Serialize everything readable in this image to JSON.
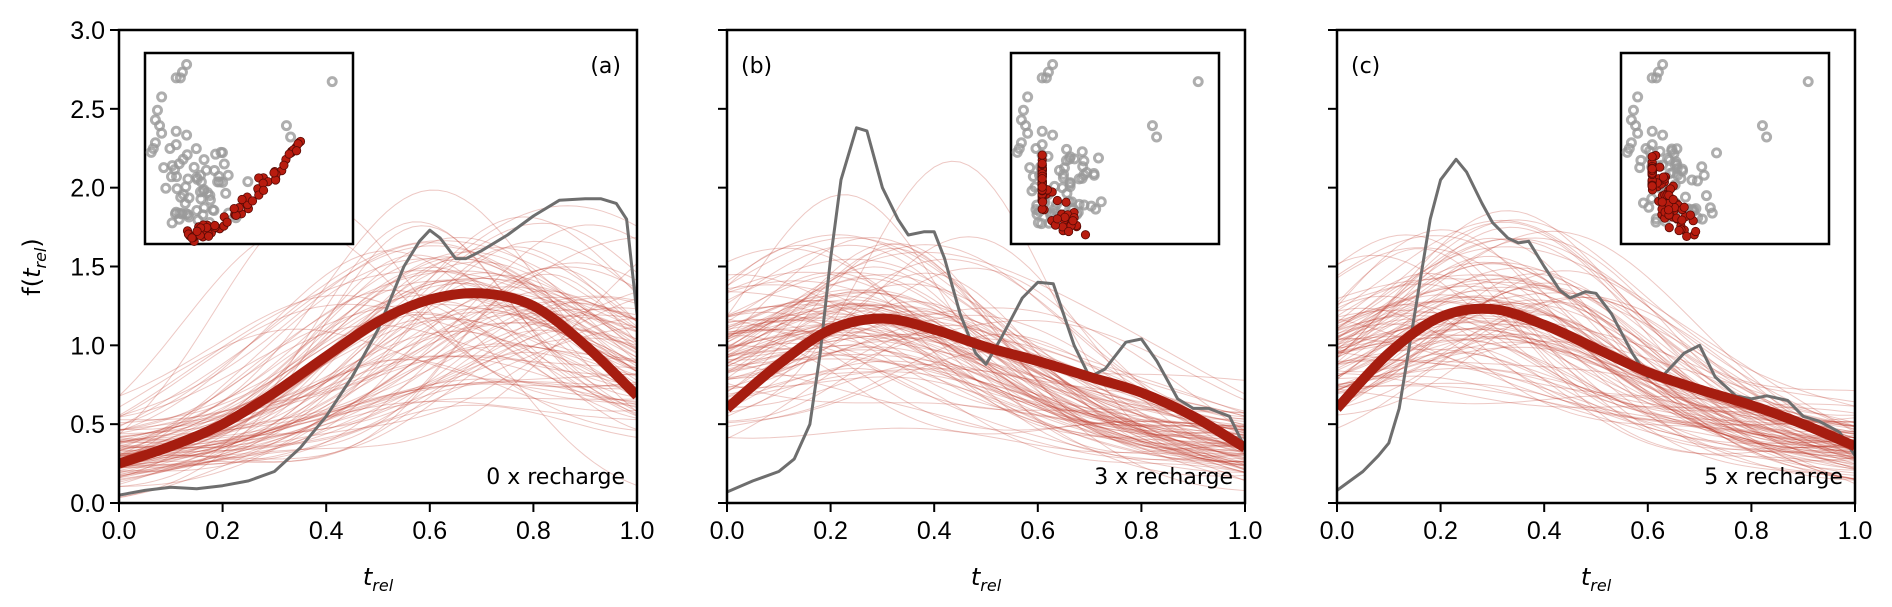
{
  "chart_data": [
    {
      "type": "line",
      "panel_label": "(a)",
      "annotation": "0 x recharge",
      "xlabel": "t_rel",
      "ylabel": "f(t_rel)",
      "xlim": [
        0,
        1
      ],
      "ylim": [
        0,
        3
      ],
      "xticks": [
        "0.0",
        "0.2",
        "0.4",
        "0.6",
        "0.8",
        "1.0"
      ],
      "yticks": [
        "0.0",
        "0.5",
        "1.0",
        "1.5",
        "2.0",
        "2.5",
        "3.0"
      ],
      "mean_curve": {
        "x": [
          0,
          0.1,
          0.2,
          0.3,
          0.4,
          0.5,
          0.6,
          0.7,
          0.8,
          0.9,
          1.0
        ],
        "y": [
          0.25,
          0.36,
          0.5,
          0.7,
          0.93,
          1.15,
          1.29,
          1.33,
          1.25,
          1.0,
          0.68
        ]
      },
      "observed_curve": {
        "x": [
          0,
          0.05,
          0.1,
          0.15,
          0.2,
          0.25,
          0.3,
          0.35,
          0.4,
          0.45,
          0.5,
          0.55,
          0.58,
          0.6,
          0.62,
          0.65,
          0.67,
          0.7,
          0.75,
          0.8,
          0.85,
          0.9,
          0.93,
          0.96,
          0.98,
          1.0
        ],
        "y": [
          0.05,
          0.08,
          0.1,
          0.09,
          0.11,
          0.14,
          0.2,
          0.35,
          0.55,
          0.8,
          1.1,
          1.5,
          1.66,
          1.73,
          1.68,
          1.55,
          1.55,
          1.6,
          1.7,
          1.82,
          1.92,
          1.93,
          1.93,
          1.9,
          1.8,
          1.2
        ]
      },
      "ensemble": {
        "count": 100,
        "peak_center": 0.68,
        "peak_spread": 0.14,
        "amp": 1.3,
        "amp_spread": 0.28,
        "start": 0.28,
        "start_spread": 0.1
      },
      "inset": {
        "gray_points": 80,
        "red_points": 70,
        "shape": "rising-right"
      }
    },
    {
      "type": "line",
      "panel_label": "(b)",
      "annotation": "3 x recharge",
      "xlabel": "t_rel",
      "xlim": [
        0,
        1
      ],
      "ylim": [
        0,
        3
      ],
      "xticks": [
        "0.0",
        "0.2",
        "0.4",
        "0.6",
        "0.8",
        "1.0"
      ],
      "mean_curve": {
        "x": [
          0,
          0.1,
          0.2,
          0.3,
          0.4,
          0.5,
          0.6,
          0.7,
          0.8,
          0.9,
          1.0
        ],
        "y": [
          0.6,
          0.88,
          1.1,
          1.17,
          1.1,
          0.99,
          0.9,
          0.8,
          0.7,
          0.55,
          0.35
        ]
      },
      "observed_curve": {
        "x": [
          0,
          0.05,
          0.1,
          0.13,
          0.16,
          0.18,
          0.2,
          0.22,
          0.25,
          0.27,
          0.3,
          0.33,
          0.35,
          0.38,
          0.4,
          0.42,
          0.45,
          0.48,
          0.5,
          0.53,
          0.57,
          0.6,
          0.63,
          0.67,
          0.7,
          0.73,
          0.77,
          0.8,
          0.83,
          0.87,
          0.9,
          0.93,
          0.97,
          1.0
        ],
        "y": [
          0.07,
          0.14,
          0.2,
          0.28,
          0.5,
          0.95,
          1.55,
          2.05,
          2.38,
          2.36,
          2.0,
          1.8,
          1.7,
          1.72,
          1.72,
          1.55,
          1.2,
          0.95,
          0.88,
          1.05,
          1.3,
          1.4,
          1.39,
          1.0,
          0.8,
          0.85,
          1.02,
          1.04,
          0.9,
          0.66,
          0.6,
          0.6,
          0.55,
          0.35
        ]
      },
      "ensemble": {
        "count": 100,
        "peak_center": 0.3,
        "peak_spread": 0.12,
        "amp": 1.2,
        "amp_spread": 0.3,
        "start": 0.6,
        "start_spread": 0.15
      },
      "inset": {
        "gray_points": 80,
        "red_points": 80,
        "shape": "left-cup"
      }
    },
    {
      "type": "line",
      "panel_label": "(c)",
      "annotation": "5 x recharge",
      "xlabel": "t_rel",
      "xlim": [
        0,
        1
      ],
      "ylim": [
        0,
        3
      ],
      "xticks": [
        "0.0",
        "0.2",
        "0.4",
        "0.6",
        "0.8",
        "1.0"
      ],
      "mean_curve": {
        "x": [
          0,
          0.1,
          0.2,
          0.3,
          0.4,
          0.5,
          0.6,
          0.7,
          0.8,
          0.9,
          1.0
        ],
        "y": [
          0.6,
          0.95,
          1.18,
          1.23,
          1.13,
          0.98,
          0.83,
          0.72,
          0.62,
          0.5,
          0.36
        ]
      },
      "observed_curve": {
        "x": [
          0,
          0.05,
          0.08,
          0.1,
          0.12,
          0.15,
          0.18,
          0.2,
          0.23,
          0.25,
          0.28,
          0.3,
          0.33,
          0.35,
          0.37,
          0.4,
          0.43,
          0.45,
          0.48,
          0.5,
          0.53,
          0.57,
          0.6,
          0.63,
          0.67,
          0.7,
          0.73,
          0.77,
          0.8,
          0.83,
          0.87,
          0.9,
          0.93,
          0.97,
          1.0
        ],
        "y": [
          0.08,
          0.2,
          0.3,
          0.38,
          0.6,
          1.2,
          1.8,
          2.05,
          2.18,
          2.1,
          1.9,
          1.78,
          1.68,
          1.65,
          1.66,
          1.5,
          1.35,
          1.3,
          1.34,
          1.33,
          1.2,
          0.95,
          0.8,
          0.81,
          0.95,
          1.0,
          0.8,
          0.68,
          0.66,
          0.68,
          0.65,
          0.55,
          0.52,
          0.45,
          0.3
        ]
      },
      "ensemble": {
        "count": 100,
        "peak_center": 0.28,
        "peak_spread": 0.1,
        "amp": 1.25,
        "amp_spread": 0.25,
        "start": 0.6,
        "start_spread": 0.15
      },
      "inset": {
        "gray_points": 80,
        "red_points": 90,
        "shape": "left-cup-tight"
      }
    }
  ],
  "colors": {
    "mean": "#a61d10",
    "ensemble": "#c0392b",
    "observed": "#6e6e6e",
    "gray_points": "#9a9a9a",
    "red_points": "#b81c0f"
  }
}
